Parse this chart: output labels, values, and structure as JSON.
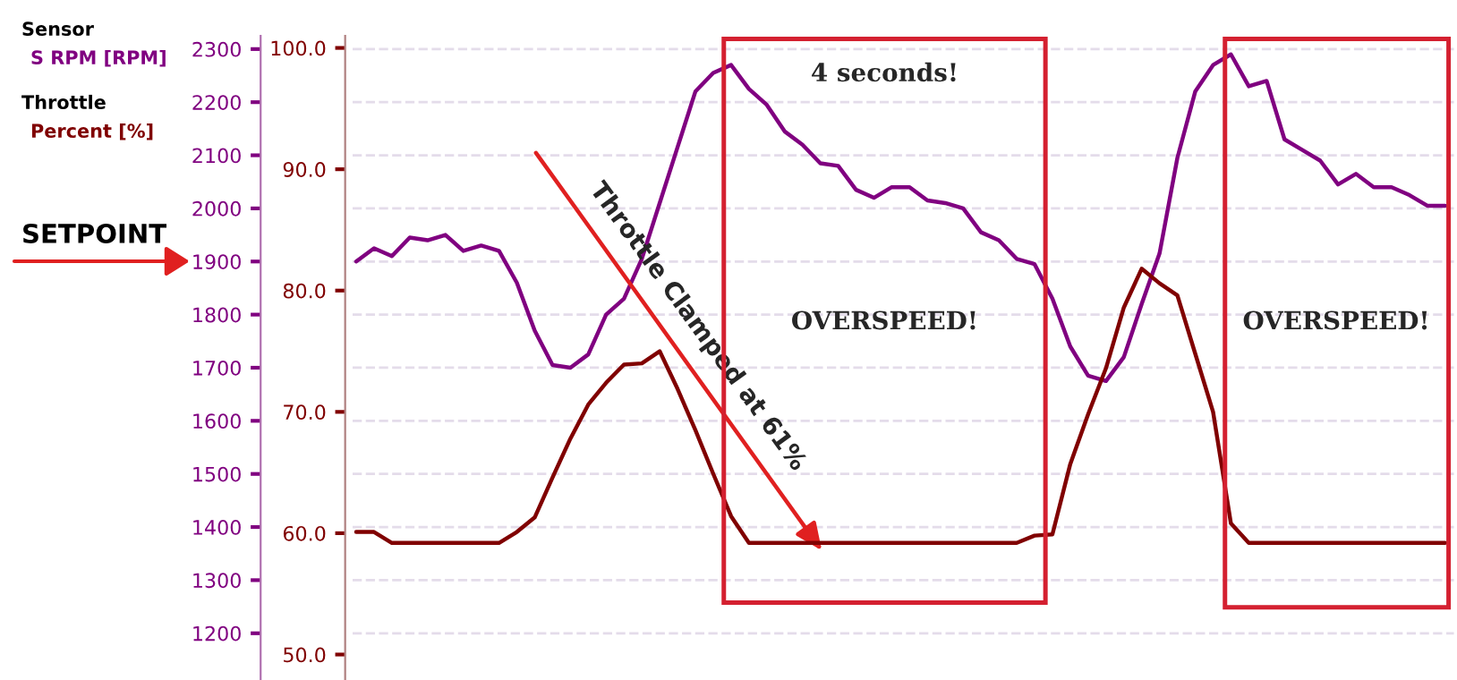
{
  "chart_data": {
    "type": "line",
    "categories": [
      null,
      null,
      null,
      null,
      null,
      null,
      null,
      null,
      null,
      null,
      null,
      null,
      null,
      null,
      null,
      null,
      null,
      null,
      null,
      null,
      null,
      null,
      null,
      null,
      null,
      null,
      null,
      null,
      null,
      null,
      null,
      null,
      null,
      null,
      null,
      null,
      null,
      null,
      null,
      null,
      null,
      null,
      null,
      null,
      null,
      null,
      null,
      null,
      null,
      null,
      null,
      null,
      null,
      null,
      null,
      null,
      null,
      null,
      null,
      null,
      null,
      null
    ],
    "series": [
      {
        "name": "S RPM [RPM]",
        "color": "#800080",
        "values": [
          1900,
          1925,
          1910,
          1945,
          1940,
          1950,
          1920,
          1930,
          1920,
          1860,
          1770,
          1705,
          1700,
          1725,
          1800,
          1830,
          1905,
          2010,
          2115,
          2220,
          2255,
          2270,
          2225,
          2195,
          2145,
          2120,
          2085,
          2080,
          2035,
          2020,
          2040,
          2040,
          2015,
          2010,
          2000,
          1955,
          1940,
          1905,
          1895,
          1830,
          1740,
          1685,
          1675,
          1720,
          1820,
          1915,
          2095,
          2220,
          2270,
          2290,
          2230,
          2240,
          2130,
          2110,
          2090,
          2045,
          2065,
          2040,
          2040,
          2025,
          2005,
          2005
        ]
      },
      {
        "name": "Percent [%]",
        "color": "#800000",
        "axis": "y2",
        "values": [
          60.1,
          60.1,
          59.2,
          59.2,
          59.2,
          59.2,
          59.2,
          59.2,
          59.2,
          60.1,
          61.3,
          64.6,
          67.8,
          70.6,
          72.4,
          73.9,
          74.0,
          75.0,
          71.9,
          68.5,
          64.9,
          61.4,
          59.2,
          59.2,
          59.2,
          59.2,
          59.2,
          59.2,
          59.2,
          59.2,
          59.2,
          59.2,
          59.2,
          59.2,
          59.2,
          59.2,
          59.2,
          59.2,
          59.8,
          59.9,
          65.7,
          69.8,
          73.6,
          78.6,
          81.8,
          80.6,
          79.6,
          74.8,
          70.0,
          60.8,
          59.2,
          59.2,
          59.2,
          59.2,
          59.2,
          59.2,
          59.2,
          59.2,
          59.2,
          59.2,
          59.2,
          59.2
        ]
      }
    ],
    "ylim": [
      1112,
      2325
    ],
    "yticks": [
      1200,
      1300,
      1400,
      1500,
      1600,
      1700,
      1800,
      1900,
      2000,
      2100,
      2200,
      2300
    ],
    "y2lim": [
      47.9,
      101
    ],
    "y2ticks": [
      {
        "value": 50,
        "label": "50.0"
      },
      {
        "value": 60,
        "label": "60.0"
      },
      {
        "value": 70,
        "label": "70.0"
      },
      {
        "value": 80,
        "label": "80.0"
      },
      {
        "value": 90,
        "label": "90.0"
      },
      {
        "value": 100,
        "label": "100.0"
      }
    ],
    "grid": "y",
    "legend": "left",
    "annotations": [
      "Sensor",
      "Throttle",
      "4 seconds!",
      "OVERSPEED!",
      "OVERSPEED!",
      "SETPOINT",
      "Throttle Clamped at 61%"
    ]
  }
}
